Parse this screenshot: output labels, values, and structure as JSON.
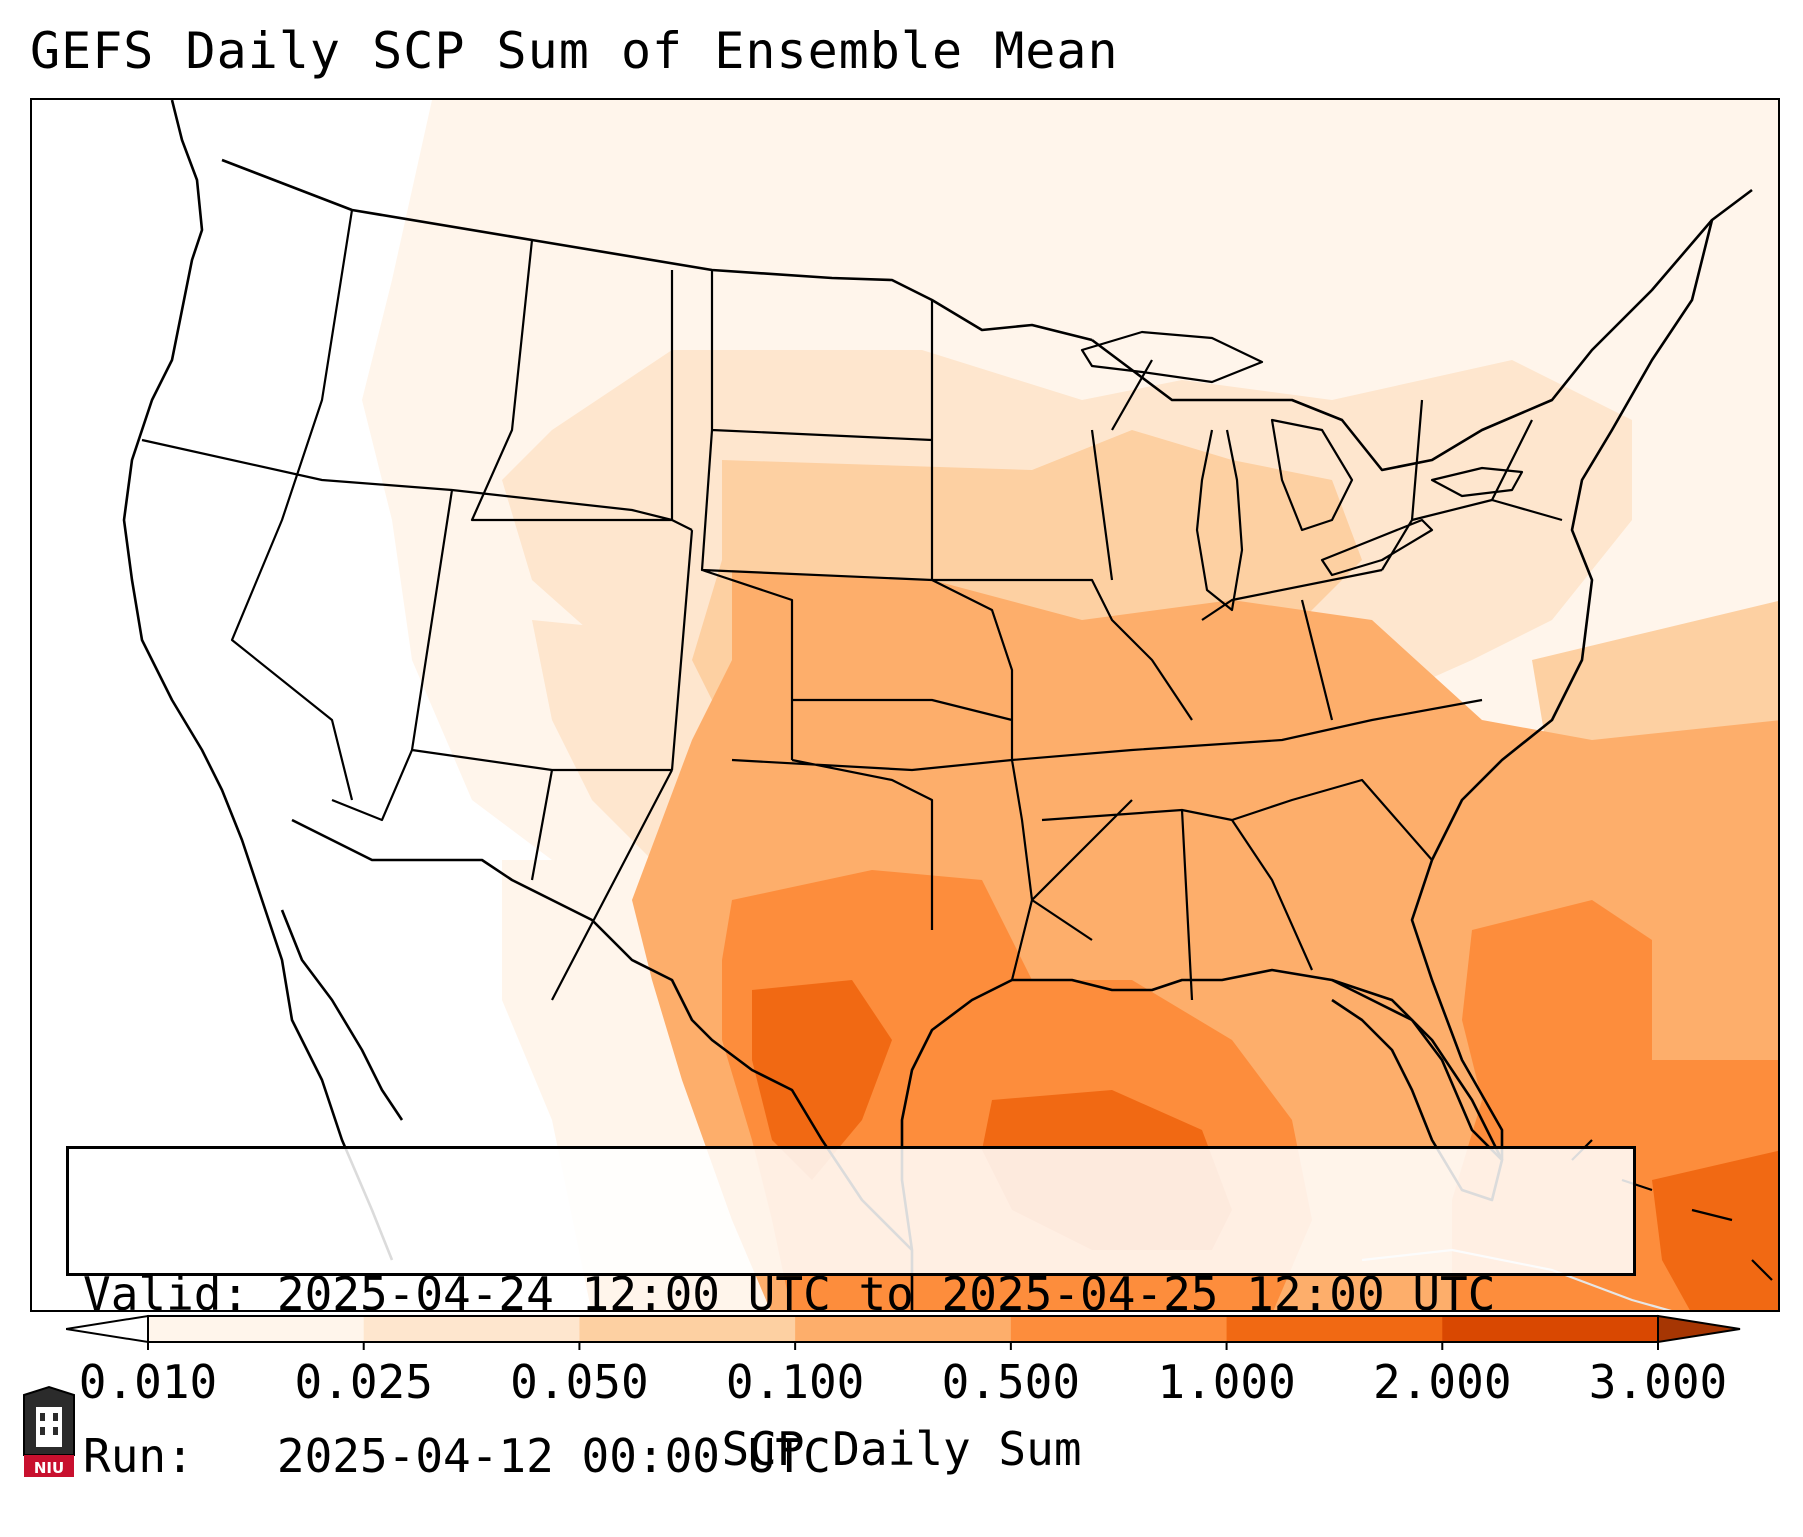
{
  "title": "GEFS Daily SCP Sum of Ensemble Mean",
  "info": {
    "valid_label": "Valid:",
    "valid_value": "2025-04-24 12:00 UTC to 2025-04-25 12:00 UTC",
    "run_label": "Run:",
    "run_value": "2025-04-12 00:00 UTC"
  },
  "colorbar": {
    "title": "SCP Daily Sum",
    "ticks": [
      "0.010",
      "0.025",
      "0.050",
      "0.100",
      "0.500",
      "1.000",
      "2.000",
      "3.000"
    ],
    "colors": [
      "#fff5eb",
      "#fee6ce",
      "#fdd0a2",
      "#fdae6b",
      "#fd8d3c",
      "#f16913",
      "#d94801"
    ],
    "under_color": "#ffffff",
    "over_color": "#a63603",
    "extend": "both"
  },
  "logo": {
    "name": "niu-logo-icon",
    "text": "NIU"
  },
  "map": {
    "region": "CONUS",
    "boundaries": [
      "states",
      "coastlines",
      "countries"
    ]
  }
}
